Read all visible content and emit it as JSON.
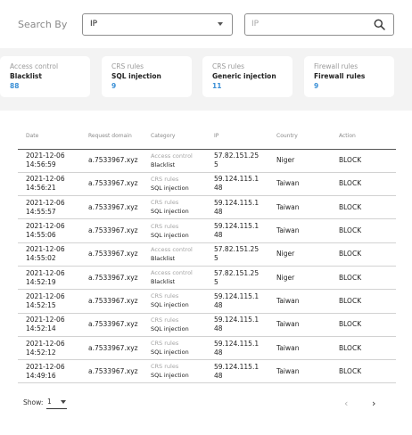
{
  "search": {
    "label": "Search By",
    "selected": "IP",
    "placeholder": "IP"
  },
  "cards": [
    {
      "type": "Access control",
      "name": "Blacklist",
      "count": "88"
    },
    {
      "type": "CRS rules",
      "name": "SQL injection",
      "count": "9"
    },
    {
      "type": "CRS rules",
      "name": "Generic injection",
      "count": "11"
    },
    {
      "type": "Firewall rules",
      "name": "Firewall rules",
      "count": "9"
    }
  ],
  "table": {
    "columns": [
      "Date",
      "Request domain",
      "Category",
      "IP",
      "Country",
      "Action"
    ],
    "rows": [
      {
        "date": "2021-12-06 14:56:59",
        "domain": "a.7533967.xyz",
        "cat_type": "Access control",
        "cat_name": "Blacklist",
        "ip": "57.82.151.255",
        "country": "Niger",
        "action": "BLOCK"
      },
      {
        "date": "2021-12-06 14:56:21",
        "domain": "a.7533967.xyz",
        "cat_type": "CRS rules",
        "cat_name": "SQL injection",
        "ip": "59.124.115.148",
        "country": "Taiwan",
        "action": "BLOCK"
      },
      {
        "date": "2021-12-06 14:55:57",
        "domain": "a.7533967.xyz",
        "cat_type": "CRS rules",
        "cat_name": "SQL injection",
        "ip": "59.124.115.148",
        "country": "Taiwan",
        "action": "BLOCK"
      },
      {
        "date": "2021-12-06 14:55:06",
        "domain": "a.7533967.xyz",
        "cat_type": "CRS rules",
        "cat_name": "SQL injection",
        "ip": "59.124.115.148",
        "country": "Taiwan",
        "action": "BLOCK"
      },
      {
        "date": "2021-12-06 14:55:02",
        "domain": "a.7533967.xyz",
        "cat_type": "Access control",
        "cat_name": "Blacklist",
        "ip": "57.82.151.255",
        "country": "Niger",
        "action": "BLOCK"
      },
      {
        "date": "2021-12-06 14:52:19",
        "domain": "a.7533967.xyz",
        "cat_type": "Access control",
        "cat_name": "Blacklist",
        "ip": "57.82.151.255",
        "country": "Niger",
        "action": "BLOCK"
      },
      {
        "date": "2021-12-06 14:52:15",
        "domain": "a.7533967.xyz",
        "cat_type": "CRS rules",
        "cat_name": "SQL injection",
        "ip": "59.124.115.148",
        "country": "Taiwan",
        "action": "BLOCK"
      },
      {
        "date": "2021-12-06 14:52:14",
        "domain": "a.7533967.xyz",
        "cat_type": "CRS rules",
        "cat_name": "SQL injection",
        "ip": "59.124.115.148",
        "country": "Taiwan",
        "action": "BLOCK"
      },
      {
        "date": "2021-12-06 14:52:12",
        "domain": "a.7533967.xyz",
        "cat_type": "CRS rules",
        "cat_name": "SQL injection",
        "ip": "59.124.115.148",
        "country": "Taiwan",
        "action": "BLOCK"
      },
      {
        "date": "2021-12-06 14:49:16",
        "domain": "a.7533967.xyz",
        "cat_type": "CRS rules",
        "cat_name": "SQL injection",
        "ip": "59.124.115.148",
        "country": "Taiwan",
        "action": "BLOCK"
      }
    ]
  },
  "pagination": {
    "show_label": "Show:",
    "value": "1",
    "prev_icon": "chevron-left-icon",
    "next_icon": "chevron-right-icon"
  },
  "colors": {
    "accent": "#3a8fd6",
    "page_background": "#f3f3f3"
  }
}
